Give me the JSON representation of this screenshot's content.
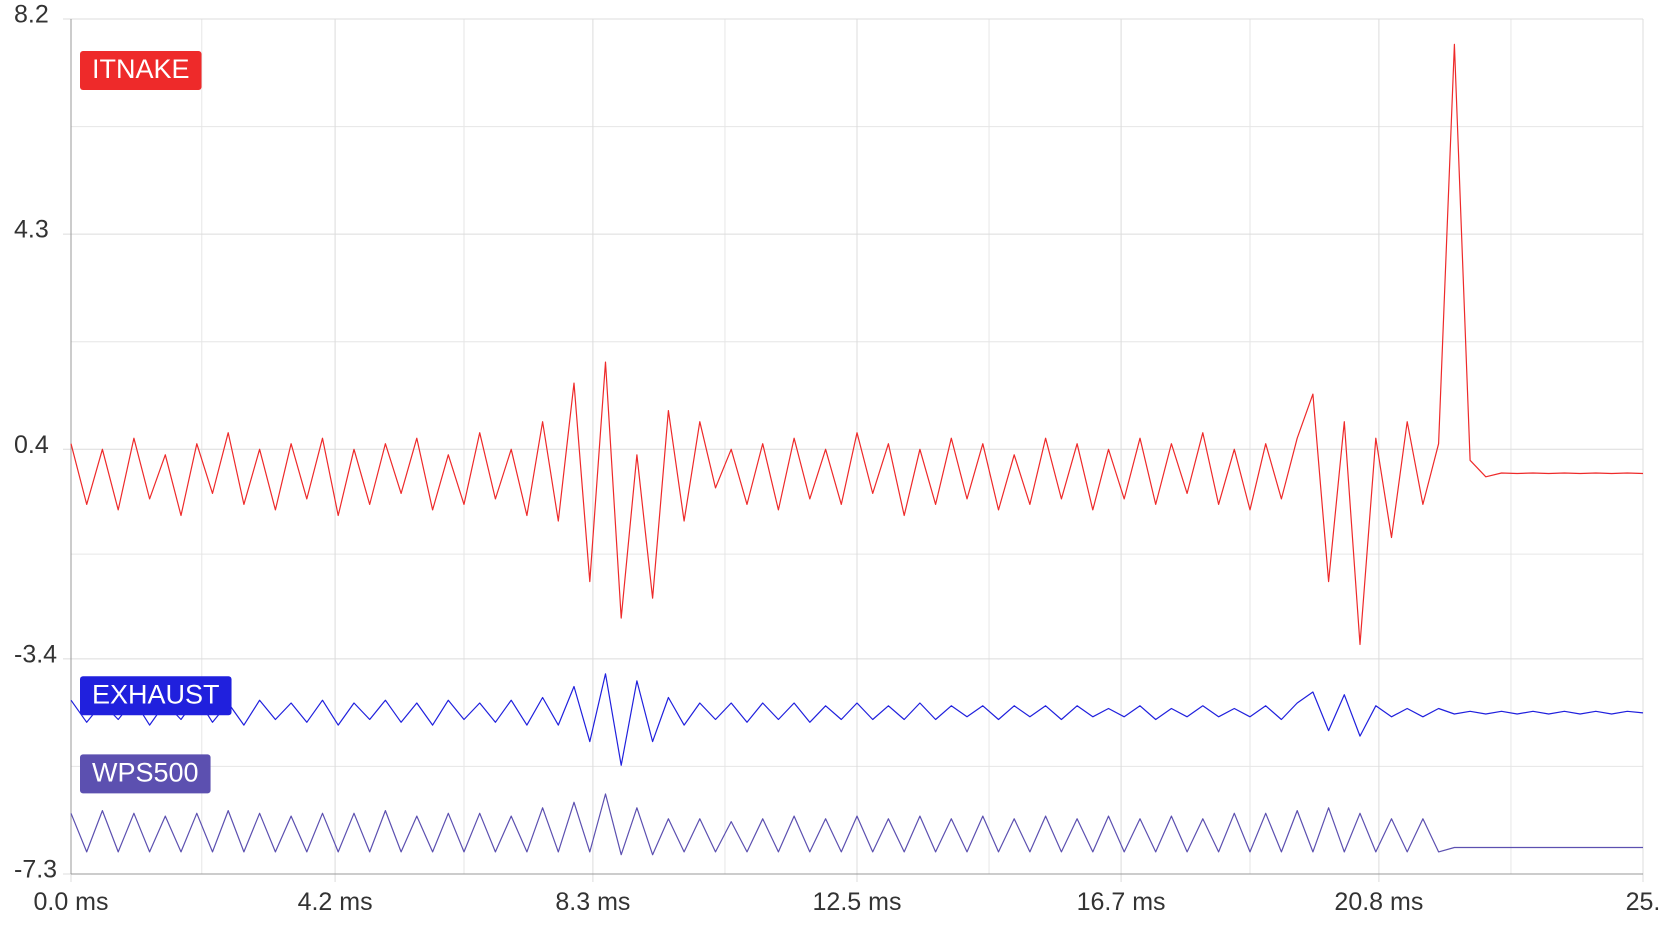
{
  "chart_data": {
    "type": "line",
    "x": [
      0,
      0.25,
      0.5,
      0.75,
      1,
      1.25,
      1.5,
      1.75,
      2,
      2.25,
      2.5,
      2.75,
      3,
      3.25,
      3.5,
      3.75,
      4,
      4.25,
      4.5,
      4.75,
      5,
      5.25,
      5.5,
      5.75,
      6,
      6.25,
      6.5,
      6.75,
      7,
      7.25,
      7.5,
      7.75,
      8,
      8.25,
      8.5,
      8.75,
      9,
      9.25,
      9.5,
      9.75,
      10,
      10.25,
      10.5,
      10.75,
      11,
      11.25,
      11.5,
      11.75,
      12,
      12.25,
      12.5,
      12.75,
      13,
      13.25,
      13.5,
      13.75,
      14,
      14.25,
      14.5,
      14.75,
      15,
      15.25,
      15.5,
      15.75,
      16,
      16.25,
      16.5,
      16.75,
      17,
      17.25,
      17.5,
      17.75,
      18,
      18.25,
      18.5,
      18.75,
      19,
      19.25,
      19.5,
      19.75,
      20,
      20.25,
      20.5,
      20.75,
      21,
      21.25,
      21.5,
      21.75,
      22,
      22.25,
      22.5,
      22.75,
      23,
      23.25,
      23.5,
      23.75,
      24,
      24.25,
      24.5,
      24.75,
      25
    ],
    "series": [
      {
        "name": "ITNAKE",
        "color": "#ee2a2a",
        "values": [
          0.5,
          -0.6,
          0.4,
          -0.7,
          0.6,
          -0.5,
          0.3,
          -0.8,
          0.5,
          -0.4,
          0.7,
          -0.6,
          0.4,
          -0.7,
          0.5,
          -0.5,
          0.6,
          -0.8,
          0.4,
          -0.6,
          0.5,
          -0.4,
          0.6,
          -0.7,
          0.3,
          -0.6,
          0.7,
          -0.5,
          0.4,
          -0.8,
          0.9,
          -0.9,
          1.6,
          -2.0,
          1.98,
          -2.66,
          0.3,
          -2.3,
          1.1,
          -0.9,
          0.9,
          -0.3,
          0.4,
          -0.6,
          0.5,
          -0.7,
          0.6,
          -0.5,
          0.4,
          -0.6,
          0.7,
          -0.4,
          0.5,
          -0.8,
          0.4,
          -0.6,
          0.6,
          -0.5,
          0.5,
          -0.7,
          0.3,
          -0.6,
          0.6,
          -0.5,
          0.5,
          -0.7,
          0.4,
          -0.5,
          0.6,
          -0.6,
          0.5,
          -0.4,
          0.7,
          -0.6,
          0.4,
          -0.7,
          0.5,
          -0.5,
          0.6,
          1.4,
          -2.0,
          0.9,
          -3.14,
          0.6,
          -1.2,
          0.9,
          -0.6,
          0.5,
          7.74,
          0.2,
          -0.1,
          -0.03,
          -0.04,
          -0.03,
          -0.04,
          -0.03,
          -0.04,
          -0.03,
          -0.04,
          -0.03,
          -0.04
        ]
      },
      {
        "name": "EXHAUST",
        "color": "#2020dd",
        "values": [
          -4.15,
          -4.55,
          -4.2,
          -4.5,
          -4.15,
          -4.6,
          -4.2,
          -4.5,
          -4.1,
          -4.55,
          -4.2,
          -4.6,
          -4.15,
          -4.5,
          -4.2,
          -4.55,
          -4.15,
          -4.6,
          -4.2,
          -4.5,
          -4.15,
          -4.55,
          -4.2,
          -4.6,
          -4.15,
          -4.5,
          -4.2,
          -4.55,
          -4.15,
          -4.6,
          -4.1,
          -4.6,
          -3.9,
          -4.9,
          -3.67,
          -5.33,
          -3.8,
          -4.9,
          -4.1,
          -4.6,
          -4.2,
          -4.5,
          -4.2,
          -4.55,
          -4.2,
          -4.5,
          -4.2,
          -4.55,
          -4.25,
          -4.5,
          -4.2,
          -4.5,
          -4.25,
          -4.5,
          -4.2,
          -4.5,
          -4.25,
          -4.45,
          -4.25,
          -4.5,
          -4.25,
          -4.45,
          -4.25,
          -4.5,
          -4.25,
          -4.45,
          -4.3,
          -4.45,
          -4.25,
          -4.5,
          -4.3,
          -4.45,
          -4.25,
          -4.45,
          -4.3,
          -4.45,
          -4.25,
          -4.5,
          -4.2,
          -4.0,
          -4.7,
          -4.05,
          -4.8,
          -4.25,
          -4.45,
          -4.3,
          -4.45,
          -4.3,
          -4.4,
          -4.35,
          -4.4,
          -4.35,
          -4.4,
          -4.35,
          -4.4,
          -4.35,
          -4.4,
          -4.35,
          -4.4,
          -4.35,
          -4.38
        ]
      },
      {
        "name": "WPS500",
        "color": "#5c50b0",
        "values": [
          -6.2,
          -6.9,
          -6.15,
          -6.9,
          -6.2,
          -6.9,
          -6.25,
          -6.9,
          -6.2,
          -6.9,
          -6.15,
          -6.9,
          -6.2,
          -6.9,
          -6.25,
          -6.9,
          -6.2,
          -6.9,
          -6.2,
          -6.9,
          -6.15,
          -6.9,
          -6.25,
          -6.9,
          -6.2,
          -6.9,
          -6.2,
          -6.9,
          -6.25,
          -6.9,
          -6.1,
          -6.9,
          -6.0,
          -6.9,
          -5.85,
          -6.95,
          -6.1,
          -6.95,
          -6.3,
          -6.9,
          -6.3,
          -6.9,
          -6.35,
          -6.9,
          -6.3,
          -6.9,
          -6.25,
          -6.9,
          -6.3,
          -6.9,
          -6.25,
          -6.9,
          -6.3,
          -6.9,
          -6.25,
          -6.9,
          -6.3,
          -6.9,
          -6.25,
          -6.9,
          -6.3,
          -6.9,
          -6.25,
          -6.9,
          -6.3,
          -6.9,
          -6.25,
          -6.9,
          -6.3,
          -6.9,
          -6.25,
          -6.9,
          -6.3,
          -6.9,
          -6.2,
          -6.9,
          -6.2,
          -6.9,
          -6.15,
          -6.9,
          -6.1,
          -6.9,
          -6.2,
          -6.9,
          -6.3,
          -6.9,
          -6.3,
          -6.9,
          -6.82,
          -6.82,
          -6.82,
          -6.82,
          -6.82,
          -6.82,
          -6.82,
          -6.82,
          -6.82,
          -6.82,
          -6.82,
          -6.82,
          -6.82
        ]
      }
    ],
    "xlim": [
      0,
      25
    ],
    "xticks": [
      {
        "value": 0,
        "label": "0.0 ms"
      },
      {
        "value": 4.2,
        "label": "4.2 ms"
      },
      {
        "value": 8.3,
        "label": "8.3 ms"
      },
      {
        "value": 12.5,
        "label": "12.5 ms"
      },
      {
        "value": 16.7,
        "label": "16.7 ms"
      },
      {
        "value": 20.8,
        "label": "20.8 ms"
      },
      {
        "value": 25,
        "label": "25."
      }
    ],
    "x_minor_ticks": [
      2.08,
      6.25,
      10.4,
      14.6,
      18.75,
      22.9
    ],
    "ylim": [
      -7.3,
      8.2
    ],
    "yticks": [
      8.2,
      4.3,
      0.4,
      -3.4,
      -7.3
    ],
    "y_minor_ticks": [
      6.25,
      2.35,
      -1.5,
      -5.35
    ],
    "grid": true
  }
}
